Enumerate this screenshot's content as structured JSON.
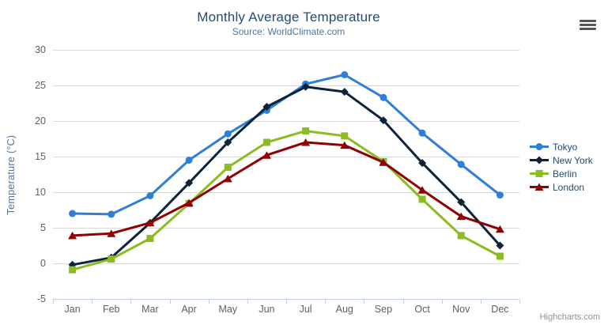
{
  "credits_label": "Highcharts.com",
  "chart_data": {
    "type": "line",
    "title": "Monthly Average Temperature",
    "subtitle": "Source: WorldClimate.com",
    "xlabel": "",
    "ylabel": "Temperature (°C)",
    "categories": [
      "Jan",
      "Feb",
      "Mar",
      "Apr",
      "May",
      "Jun",
      "Jul",
      "Aug",
      "Sep",
      "Oct",
      "Nov",
      "Dec"
    ],
    "ylim": [
      -5,
      30
    ],
    "yticks": [
      30,
      25,
      20,
      15,
      10,
      5,
      0,
      -5
    ],
    "grid": true,
    "legend_position": "right",
    "grid_color": "#d8d8d8",
    "axis_line_color": "#c0d0e0",
    "axis_label_color": "#606060",
    "series": [
      {
        "name": "Tokyo",
        "color": "#2f7ed8",
        "marker": "circle",
        "values": [
          7.0,
          6.9,
          9.5,
          14.5,
          18.2,
          21.5,
          25.2,
          26.5,
          23.3,
          18.3,
          13.9,
          9.6
        ]
      },
      {
        "name": "New York",
        "color": "#0d233a",
        "marker": "diamond",
        "values": [
          -0.2,
          0.8,
          5.7,
          11.3,
          17.0,
          22.0,
          24.8,
          24.1,
          20.1,
          14.1,
          8.6,
          2.5
        ]
      },
      {
        "name": "Berlin",
        "color": "#8bbc21",
        "marker": "square",
        "values": [
          -0.9,
          0.6,
          3.5,
          8.4,
          13.5,
          17.0,
          18.6,
          17.9,
          14.3,
          9.0,
          3.9,
          1.0
        ]
      },
      {
        "name": "London",
        "color": "#910000",
        "marker": "triangle",
        "values": [
          3.9,
          4.2,
          5.7,
          8.5,
          11.9,
          15.2,
          17.0,
          16.6,
          14.2,
          10.3,
          6.6,
          4.8
        ]
      }
    ]
  }
}
